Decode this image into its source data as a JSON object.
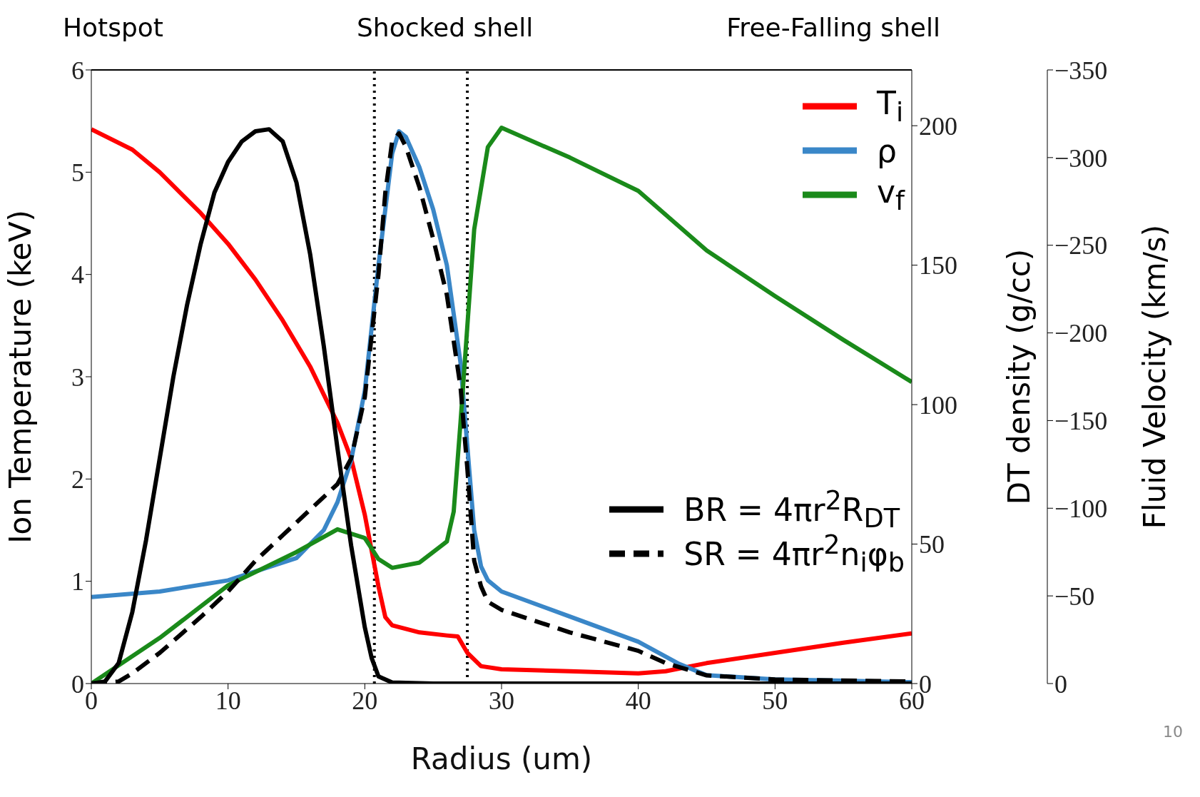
{
  "chart_data": {
    "type": "line",
    "xlabel": "Radius (um)",
    "ylabel": "Ion Temperature (keV)",
    "y2label": "DT density (g/cc)",
    "y3label": "Fluid Velocity (km/s)",
    "xlim": [
      0,
      60
    ],
    "xticks": [
      0,
      10,
      20,
      30,
      40,
      50,
      60
    ],
    "ylim": [
      0,
      6
    ],
    "yticks": [
      0,
      1,
      2,
      3,
      4,
      5,
      6
    ],
    "y2lim": [
      0,
      220
    ],
    "y2ticks": [
      0,
      50,
      100,
      150,
      200
    ],
    "y3lim": [
      0,
      -350
    ],
    "y3ticks": [
      0,
      {
        "value": -50,
        "label": "−50"
      },
      {
        "value": -100,
        "label": "−100"
      },
      {
        "value": -150,
        "label": "−150"
      },
      {
        "value": -200,
        "label": "−200"
      },
      {
        "value": -250,
        "label": "−250"
      },
      {
        "value": -300,
        "label": "−300"
      },
      {
        "value": -350,
        "label": "−350"
      }
    ],
    "legend": "top right",
    "line_style": "solid",
    "ref_lines": [
      {
        "axis": "x",
        "value": 20.7,
        "color": "#000000",
        "line_style": "dotted"
      },
      {
        "axis": "x",
        "value": 27.5,
        "color": "#000000",
        "line_style": "dotted"
      }
    ],
    "annotations": [
      "Hotspot",
      "Shocked shell",
      "Free-Falling shell",
      "10"
    ],
    "series": [
      {
        "name": "T$_{i}$",
        "color": "#ff0000",
        "axis": "y",
        "x": [
          0,
          3,
          5,
          8,
          10,
          12,
          14,
          16,
          18,
          19,
          20,
          21,
          21.5,
          22,
          24,
          26,
          26.8,
          27.5,
          28.5,
          30,
          35,
          40,
          42,
          45,
          50,
          55,
          60
        ],
        "values": [
          5.42,
          5.22,
          5.0,
          4.6,
          4.3,
          3.95,
          3.55,
          3.1,
          2.55,
          2.2,
          1.65,
          0.95,
          0.65,
          0.57,
          0.5,
          0.47,
          0.46,
          0.3,
          0.17,
          0.14,
          0.12,
          0.1,
          0.12,
          0.2,
          0.3,
          0.4,
          0.49
        ]
      },
      {
        "name": "ρ",
        "color": "#3a87c8",
        "axis": "y2",
        "x": [
          0,
          5,
          10,
          15,
          17,
          18,
          19,
          20,
          21,
          22,
          22.5,
          23,
          24,
          25,
          26,
          27,
          27.5,
          28,
          28.5,
          29,
          30,
          35,
          40,
          43,
          45,
          50,
          55,
          60
        ],
        "values": [
          31,
          33,
          37,
          45,
          55,
          65,
          80,
          105,
          150,
          190,
          198,
          196,
          185,
          170,
          150,
          115,
          85,
          55,
          42,
          37,
          33,
          24,
          15,
          7,
          3,
          1.5,
          1,
          0.5
        ]
      },
      {
        "name": "v$_{f}$",
        "color": "#1a8a1a",
        "axis": "y3",
        "x": [
          0,
          5,
          10,
          15,
          18,
          20,
          21,
          22,
          24,
          26,
          26.5,
          27,
          27.5,
          28,
          29,
          30,
          35,
          40,
          45,
          50,
          55,
          60
        ],
        "values": [
          0,
          -26,
          -56,
          -75,
          -88,
          -83,
          -71,
          -66,
          -69,
          -81,
          -98,
          -149,
          -204,
          -259,
          -306,
          -317,
          -300,
          -281,
          -247,
          -221,
          -196,
          -172
        ]
      },
      {
        "name": "BR = 4πr$^{2}$R$_{DT}$",
        "color": "#000000",
        "line_style": "solid",
        "x": [
          0,
          1,
          2,
          3,
          4,
          5,
          6,
          7,
          8,
          9,
          10,
          11,
          12,
          13,
          14,
          15,
          16,
          17,
          18,
          19,
          20,
          20.5,
          21,
          22,
          25,
          60
        ],
        "values": [
          0,
          0.02,
          0.2,
          0.7,
          1.4,
          2.2,
          3.0,
          3.7,
          4.3,
          4.8,
          5.1,
          5.3,
          5.4,
          5.42,
          5.3,
          4.9,
          4.2,
          3.3,
          2.3,
          1.35,
          0.55,
          0.25,
          0.07,
          0.01,
          0,
          0
        ]
      },
      {
        "name": "SR = 4πr$^{2}$n$_{i}$φ$_{b}$",
        "color": "#000000",
        "line_style": "dashed",
        "x": [
          0,
          2,
          3,
          5,
          8,
          10,
          12,
          14,
          16,
          18,
          19,
          20,
          21,
          21.5,
          22,
          22.5,
          23,
          24,
          25,
          26,
          27,
          27.5,
          28,
          28.5,
          29,
          30,
          35,
          40,
          42,
          45,
          50,
          60
        ],
        "values": [
          0,
          0.02,
          0.1,
          0.3,
          0.65,
          0.9,
          1.2,
          1.45,
          1.7,
          1.95,
          2.2,
          2.8,
          4.0,
          4.8,
          5.3,
          5.38,
          5.25,
          4.85,
          4.35,
          3.8,
          2.9,
          2.1,
          1.2,
          0.95,
          0.8,
          0.72,
          0.5,
          0.32,
          0.2,
          0.08,
          0.04,
          0.02
        ]
      }
    ]
  }
}
